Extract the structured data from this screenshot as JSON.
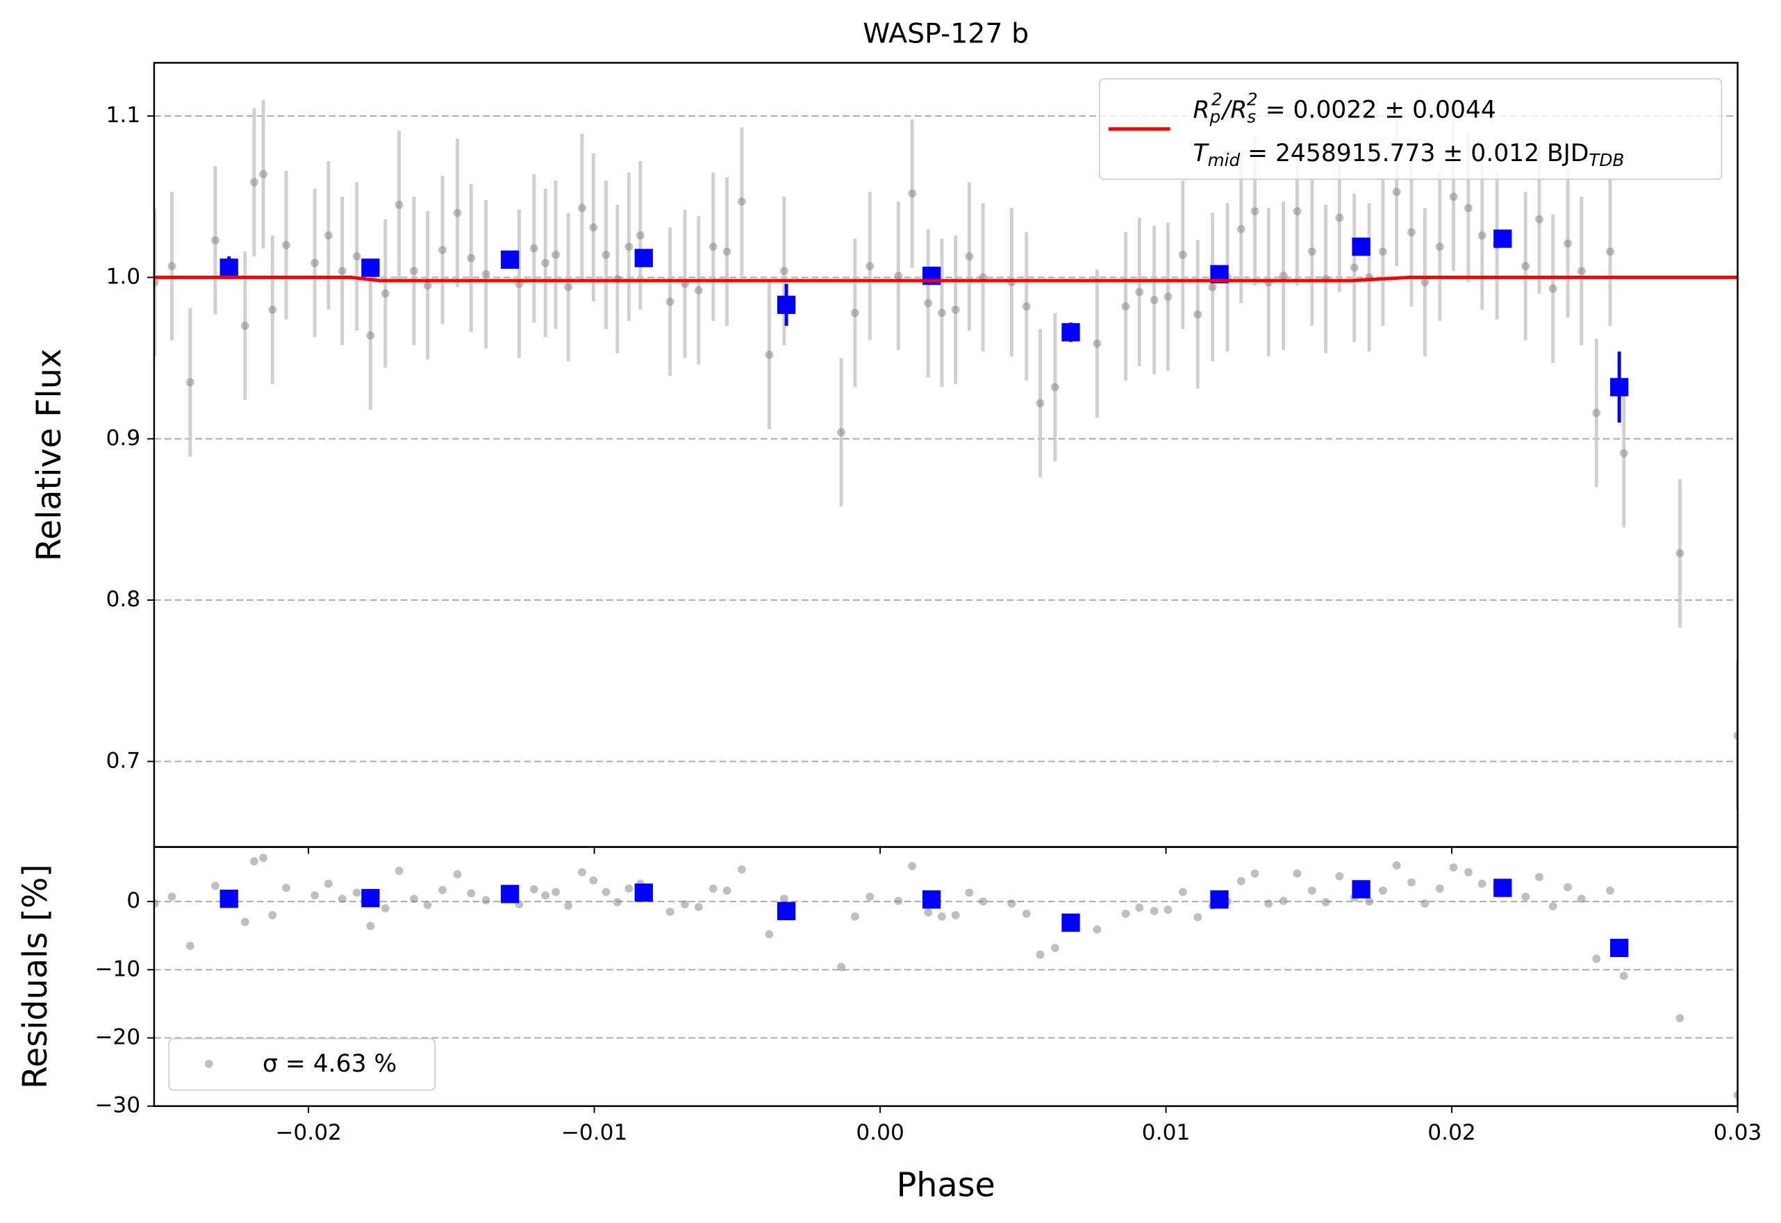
{
  "chart_data": [
    {
      "type": "scatter",
      "title": "WASP-127 b",
      "y_label": "Relative Flux",
      "legend": "upper right",
      "grid": true,
      "xlim": [
        -0.0254,
        0.03
      ],
      "ylim": [
        0.647,
        1.133
      ],
      "yticks": [
        0.7,
        0.8,
        0.9,
        {
          "value": 1.0,
          "label": "1.0"
        },
        1.1
      ],
      "series": [
        {
          "marker": "circle",
          "color": "#808080",
          "error_color": "#c8c8c8",
          "error": 0.046,
          "x": [
            -0.02538,
            -0.02478,
            -0.02414,
            -0.02326,
            -0.02222,
            -0.0219,
            -0.02158,
            -0.02126,
            -0.02078,
            -0.01978,
            -0.0193,
            -0.01882,
            -0.01831,
            -0.01783,
            -0.01731,
            -0.01683,
            -0.01631,
            -0.01583,
            -0.01531,
            -0.01479,
            -0.01431,
            -0.01379,
            -0.01263,
            -0.01211,
            -0.01171,
            -0.01135,
            -0.01091,
            -0.01043,
            -0.01003,
            -0.00959,
            -0.00919,
            -0.00879,
            -0.00839,
            -0.00735,
            -0.00683,
            -0.00635,
            -0.00584,
            -0.00536,
            -0.00484,
            -0.00388,
            -0.00336,
            -0.00136,
            -0.00088,
            -0.00036,
            0.00064,
            0.00112,
            0.00168,
            0.00216,
            0.00264,
            0.00312,
            0.0036,
            0.0046,
            0.00512,
            0.0056,
            0.00612,
            0.00759,
            0.00859,
            0.00907,
            0.00959,
            0.01007,
            0.01059,
            0.01111,
            0.01163,
            0.01215,
            0.01263,
            0.01311,
            0.01359,
            0.01411,
            0.01459,
            0.01511,
            0.01559,
            0.01607,
            0.01659,
            0.01711,
            0.01759,
            0.01807,
            0.01859,
            0.01906,
            0.01958,
            0.02006,
            0.02058,
            0.02106,
            0.02158,
            0.02258,
            0.02306,
            0.02354,
            0.02406,
            0.02454,
            0.02506,
            0.02554,
            0.02602,
            0.02798,
            0.03
          ],
          "values": [
            0.997,
            1.007,
            0.935,
            1.023,
            0.97,
            1.059,
            1.064,
            0.98,
            1.02,
            1.009,
            1.026,
            1.004,
            1.013,
            0.964,
            0.99,
            1.045,
            1.004,
            0.995,
            1.017,
            1.04,
            1.012,
            1.002,
            0.996,
            1.018,
            1.009,
            1.014,
            0.994,
            1.043,
            1.031,
            1.014,
            0.999,
            1.019,
            1.026,
            0.985,
            0.996,
            0.992,
            1.019,
            1.016,
            1.047,
            0.952,
            1.004,
            0.904,
            0.978,
            1.007,
            1.001,
            1.052,
            0.984,
            0.978,
            0.98,
            1.013,
            1.0,
            0.997,
            0.982,
            0.922,
            0.932,
            0.959,
            0.982,
            0.991,
            0.986,
            0.988,
            1.014,
            0.977,
            0.994,
            1.0,
            1.03,
            1.041,
            0.997,
            1.001,
            1.041,
            1.016,
            0.999,
            1.037,
            1.006,
            1.0,
            1.016,
            1.053,
            1.028,
            0.997,
            1.019,
            1.05,
            1.043,
            1.026,
            1.02,
            1.007,
            1.036,
            0.993,
            1.021,
            1.004,
            0.916,
            1.016,
            0.891,
            0.829,
            0.716
          ]
        },
        {
          "marker": "square",
          "color": "#0000ff",
          "x": [
            -0.02278,
            -0.01783,
            -0.01295,
            -0.00827,
            -0.00328,
            0.0018,
            0.00667,
            0.01187,
            0.01683,
            0.02178,
            0.02586
          ],
          "values": [
            1.006,
            1.006,
            1.011,
            1.012,
            0.983,
            1.001,
            0.966,
            1.002,
            1.019,
            1.024,
            0.932
          ],
          "errors": [
            0.007,
            0.004,
            0.003,
            0.003,
            0.013,
            0.005,
            0.006,
            0.003,
            0.003,
            0.003,
            0.022
          ]
        },
        {
          "marker": "line",
          "color": "#ff0000",
          "name_parts": [
            "R",
            "p",
            "2",
            "/R",
            "s",
            "2",
            " = 0.0022 ± 0.0044"
          ],
          "name_parts_2": [
            "T",
            "mid",
            " = 2458915.773 ± 0.012 BJD",
            "TDB"
          ],
          "x": [
            -0.0254,
            -0.0185,
            -0.0175,
            0.0165,
            0.0185,
            0.03
          ],
          "values": [
            1.0,
            1.0,
            0.998,
            0.998,
            1.0,
            1.0
          ]
        }
      ]
    },
    {
      "type": "scatter",
      "x_label": "Phase",
      "y_label": "Residuals [%]",
      "legend": "lower left",
      "grid": true,
      "xlim": [
        -0.0254,
        0.03
      ],
      "ylim": [
        -30,
        8
      ],
      "xticks": [
        {
          "value": -0.02,
          "label": "−0.02"
        },
        {
          "value": -0.01,
          "label": "−0.01"
        },
        {
          "value": 0,
          "label": "0.00"
        },
        0.01,
        0.02,
        0.03
      ],
      "yticks": [
        {
          "value": -30,
          "label": "−30"
        },
        {
          "value": -20,
          "label": "−20"
        },
        {
          "value": -10,
          "label": "−10"
        },
        0
      ],
      "series": [
        {
          "marker": "circle",
          "color": "#808080",
          "name": "σ = 4.63 %",
          "x": [
            -0.02538,
            -0.02478,
            -0.02414,
            -0.02326,
            -0.02222,
            -0.0219,
            -0.02158,
            -0.02126,
            -0.02078,
            -0.01978,
            -0.0193,
            -0.01882,
            -0.01831,
            -0.01783,
            -0.01731,
            -0.01683,
            -0.01631,
            -0.01583,
            -0.01531,
            -0.01479,
            -0.01431,
            -0.01379,
            -0.01263,
            -0.01211,
            -0.01171,
            -0.01135,
            -0.01091,
            -0.01043,
            -0.01003,
            -0.00959,
            -0.00919,
            -0.00879,
            -0.00839,
            -0.00735,
            -0.00683,
            -0.00635,
            -0.00584,
            -0.00536,
            -0.00484,
            -0.00388,
            -0.00336,
            -0.00136,
            -0.00088,
            -0.00036,
            0.00064,
            0.00112,
            0.00168,
            0.00216,
            0.00264,
            0.00312,
            0.0036,
            0.0046,
            0.00512,
            0.0056,
            0.00612,
            0.00759,
            0.00859,
            0.00907,
            0.00959,
            0.01007,
            0.01059,
            0.01111,
            0.01163,
            0.01215,
            0.01263,
            0.01311,
            0.01359,
            0.01411,
            0.01459,
            0.01511,
            0.01559,
            0.01607,
            0.01659,
            0.01711,
            0.01759,
            0.01807,
            0.01859,
            0.01906,
            0.01958,
            0.02006,
            0.02058,
            0.02106,
            0.02158,
            0.02258,
            0.02306,
            0.02354,
            0.02406,
            0.02454,
            0.02506,
            0.02554,
            0.02602,
            0.02798,
            0.03
          ],
          "values": [
            -0.3,
            0.7,
            -6.5,
            2.3,
            -3.0,
            5.9,
            6.4,
            -2.0,
            2.0,
            0.9,
            2.6,
            0.4,
            1.3,
            -3.6,
            -1.0,
            4.5,
            0.4,
            -0.5,
            1.7,
            4.0,
            1.2,
            0.2,
            -0.4,
            1.8,
            0.9,
            1.4,
            -0.6,
            4.3,
            3.1,
            1.4,
            -0.1,
            1.9,
            2.6,
            -1.5,
            -0.4,
            -0.8,
            1.9,
            1.6,
            4.7,
            -4.8,
            0.4,
            -9.6,
            -2.2,
            0.7,
            0.1,
            5.2,
            -1.6,
            -2.2,
            -2.0,
            1.3,
            0.0,
            -0.3,
            -1.8,
            -7.8,
            -6.8,
            -4.1,
            -1.8,
            -0.9,
            -1.4,
            -1.2,
            1.4,
            -2.3,
            -0.6,
            0.0,
            3.0,
            4.1,
            -0.3,
            0.1,
            4.1,
            1.6,
            -0.1,
            3.7,
            0.6,
            0.0,
            1.6,
            5.3,
            2.8,
            -0.3,
            1.9,
            5.0,
            4.3,
            2.6,
            2.0,
            0.7,
            3.6,
            -0.7,
            2.1,
            0.4,
            -8.4,
            1.6,
            -10.9,
            -17.1,
            -28.4
          ]
        },
        {
          "marker": "square",
          "color": "#0000ff",
          "x": [
            -0.02278,
            -0.01783,
            -0.01295,
            -0.00827,
            -0.00328,
            0.0018,
            0.00667,
            0.01187,
            0.01683,
            0.02178,
            0.02586
          ],
          "values": [
            0.4,
            0.5,
            1.1,
            1.3,
            -1.4,
            0.3,
            -3.1,
            0.3,
            1.8,
            2.0,
            -6.8
          ]
        }
      ]
    }
  ]
}
